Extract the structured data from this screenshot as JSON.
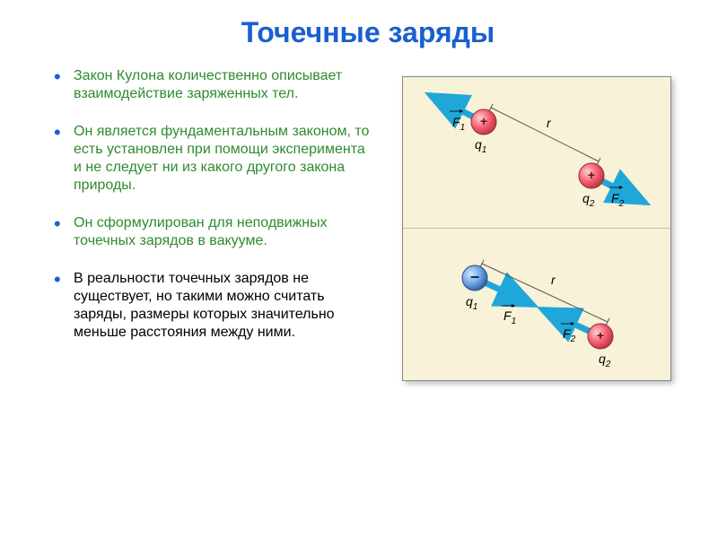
{
  "title": "Точечные заряды",
  "title_color": "#1a5fd0",
  "bullets": [
    {
      "text": "Закон Кулона количественно описывает взаимодействие заряженных тел.",
      "color": "#2e8b2e"
    },
    {
      "text": "Он является фундаментальным законом, то есть установлен при помощи эксперимента и не следует ни из какого другого закона природы.",
      "color": "#2e8b2e"
    },
    {
      "text": "Он сформулирован для неподвижных точечных зарядов в вакууме.",
      "color": "#2e8b2e"
    },
    {
      "text": "В реальности точечных зарядов не существует, но такими можно считать заряды, размеры которых значительно меньше расстояния между ними.",
      "color": "#000000"
    }
  ],
  "bullet_marker_color": "#1a5fd0",
  "diagram": {
    "background_color": "#f7f2d8",
    "border_color": "#888888",
    "arrow_color": "#1fa7d9",
    "charge_positive": {
      "fill": "#f55f6e",
      "stroke": "#9a2a36",
      "sign": "+"
    },
    "charge_negative": {
      "fill": "#6fa5e8",
      "stroke": "#2a4d8a",
      "sign": "−"
    },
    "dimension_color": "#555555",
    "text_color": "#000000",
    "labels": {
      "F1": "F",
      "F1_sub": "1",
      "F2": "F",
      "F2_sub": "2",
      "q1": "q",
      "q1_sub": "1",
      "q2": "q",
      "q2_sub": "2",
      "r": "r"
    },
    "top_panel": {
      "charge1": "positive",
      "charge2": "positive",
      "arrow1_dir": "out",
      "arrow2_dir": "out"
    },
    "bottom_panel": {
      "charge1": "negative",
      "charge2": "positive",
      "arrow1_dir": "in",
      "arrow2_dir": "in"
    }
  }
}
